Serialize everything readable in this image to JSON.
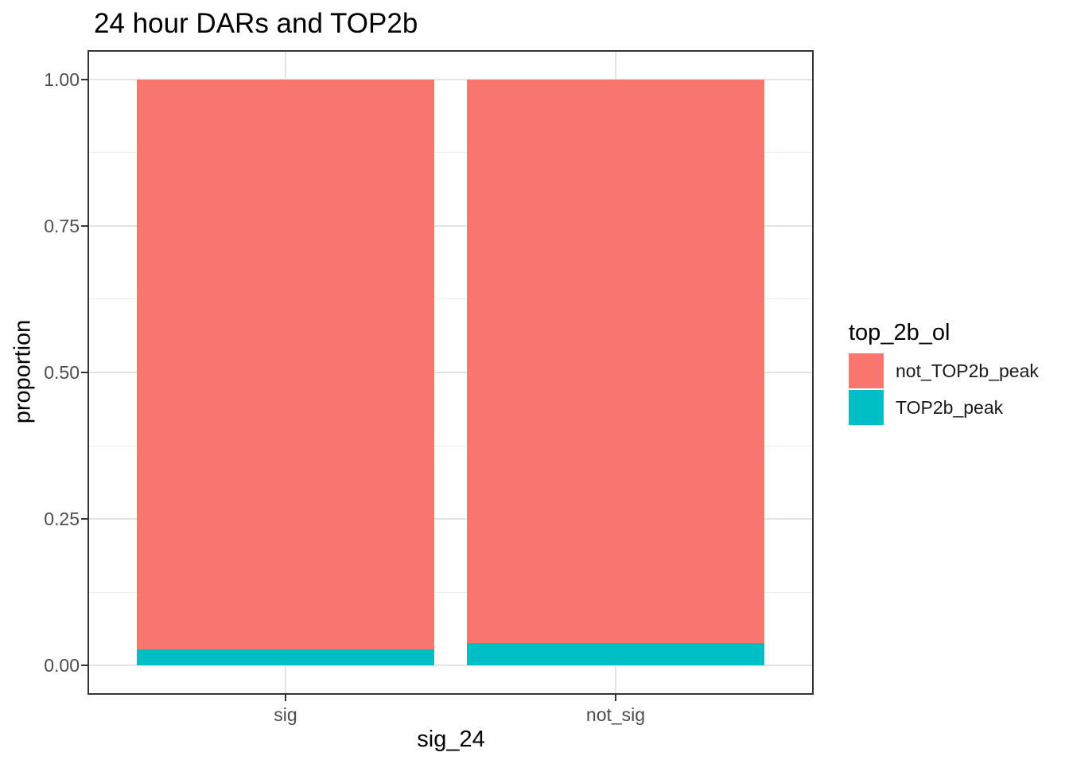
{
  "title": "24 hour DARs and TOP2b",
  "chart_data": {
    "type": "bar",
    "subtype": "stacked",
    "title": "24 hour DARs and TOP2b",
    "xlabel": "sig_24",
    "ylabel": "proportion",
    "categories": [
      "sig",
      "not_sig"
    ],
    "series": [
      {
        "name": "not_TOP2b_peak",
        "color": "#F8766D",
        "values": [
          0.972,
          0.962
        ]
      },
      {
        "name": "TOP2b_peak",
        "color": "#00BFC4",
        "values": [
          0.028,
          0.038
        ]
      }
    ],
    "stack_order_bottom_up": [
      "TOP2b_peak",
      "not_TOP2b_peak"
    ],
    "ylim": [
      0,
      1
    ],
    "y_ticks": [
      {
        "value": 0,
        "label": "0.00"
      },
      {
        "value": 0.25,
        "label": "0.25"
      },
      {
        "value": 0.5,
        "label": "0.50"
      },
      {
        "value": 0.75,
        "label": "0.75"
      },
      {
        "value": 1,
        "label": "1.00"
      }
    ],
    "y_minor_ticks": [
      0.125,
      0.375,
      0.625,
      0.875
    ],
    "grid": true,
    "legend_position": "right"
  },
  "legend": {
    "title": "top_2b_ol",
    "entries": [
      {
        "label": "not_TOP2b_peak",
        "color": "#F8766D"
      },
      {
        "label": "TOP2b_peak",
        "color": "#00BFC4"
      }
    ]
  },
  "colors": {
    "panel_border": "#333333",
    "grid_major": "#e3e3e3",
    "grid_minor": "#efefef",
    "tick_label": "#4d4d4d",
    "background": "#ffffff"
  }
}
